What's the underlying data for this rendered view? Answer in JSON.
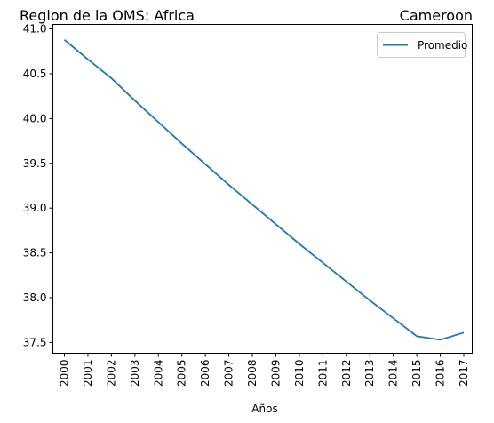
{
  "chart_data": {
    "type": "line",
    "title_left": "Region de la OMS: Africa",
    "title_right": "Cameroon",
    "xlabel": "Años",
    "ylabel": "",
    "x": [
      "2000",
      "2001",
      "2002",
      "2003",
      "2004",
      "2005",
      "2006",
      "2007",
      "2008",
      "2009",
      "2010",
      "2011",
      "2012",
      "2013",
      "2014",
      "2015",
      "2016",
      "2017"
    ],
    "series": [
      {
        "name": "Promedio",
        "color": "#1f77b4",
        "values": [
          40.88,
          40.66,
          40.45,
          40.2,
          39.96,
          39.72,
          39.49,
          39.26,
          39.04,
          38.82,
          38.6,
          38.39,
          38.18,
          37.97,
          37.77,
          37.57,
          37.53,
          37.61
        ]
      }
    ],
    "yticks": [
      "37.5",
      "38.0",
      "38.5",
      "39.0",
      "39.5",
      "40.0",
      "40.5",
      "41.0"
    ],
    "ylim": [
      37.38,
      41.05
    ],
    "legend_position": "top-right",
    "grid": false
  }
}
